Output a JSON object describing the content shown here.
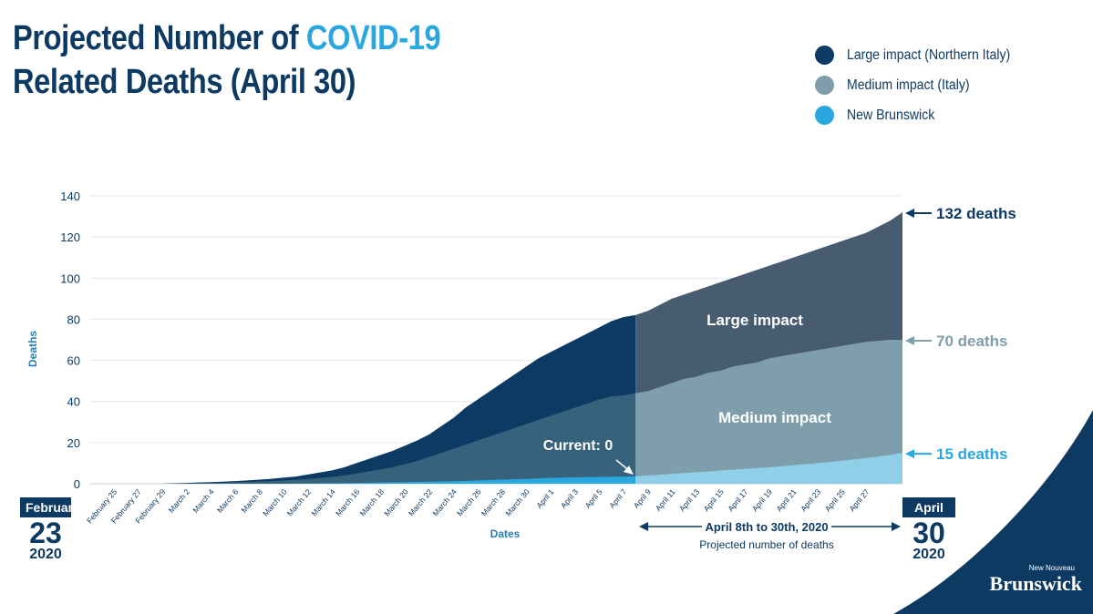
{
  "title": {
    "line1_prefix": "Projected Number of ",
    "line1_highlight": "COVID-19",
    "line2": "Related Deaths (April 30)"
  },
  "legend": [
    {
      "label": "Large impact (Northern Italy)",
      "color": "#0d3a63"
    },
    {
      "label": "Medium impact (Italy)",
      "color": "#7e9eab"
    },
    {
      "label": "New Brunswick",
      "color": "#2aa7de"
    }
  ],
  "start_badge": {
    "month": "February",
    "day": "23",
    "year": "2020"
  },
  "end_badge": {
    "month": "April",
    "day": "30",
    "year": "2020"
  },
  "logo": {
    "small": "New Nouveau",
    "big": "Brunswick"
  },
  "chart_data": {
    "type": "area",
    "ylabel": "Deaths",
    "xlabel": "Dates",
    "ylim": [
      0,
      140
    ],
    "yticks": [
      0,
      20,
      40,
      60,
      80,
      100,
      120,
      140
    ],
    "grid": true,
    "x": [
      "Feb 23",
      "Feb 24",
      "Feb 25",
      "Feb 26",
      "Feb 27",
      "Feb 28",
      "Feb 29",
      "Mar 1",
      "Mar 2",
      "Mar 3",
      "Mar 4",
      "Mar 5",
      "Mar 6",
      "Mar 7",
      "Mar 8",
      "Mar 9",
      "Mar 10",
      "Mar 11",
      "Mar 12",
      "Mar 13",
      "Mar 14",
      "Mar 15",
      "Mar 16",
      "Mar 17",
      "Mar 18",
      "Mar 19",
      "Mar 20",
      "Mar 21",
      "Mar 22",
      "Mar 23",
      "Mar 24",
      "Mar 25",
      "Mar 26",
      "Mar 27",
      "Mar 28",
      "Mar 29",
      "Mar 30",
      "Mar 31",
      "Apr 1",
      "Apr 2",
      "Apr 3",
      "Apr 4",
      "Apr 5",
      "Apr 6",
      "Apr 7",
      "Apr 8",
      "Apr 9",
      "Apr 10",
      "Apr 11",
      "Apr 12",
      "Apr 13",
      "Apr 14",
      "Apr 15",
      "Apr 16",
      "Apr 17",
      "Apr 18",
      "Apr 19",
      "Apr 20",
      "Apr 21",
      "Apr 22",
      "Apr 23",
      "Apr 24",
      "Apr 25",
      "Apr 26",
      "Apr 27",
      "Apr 28",
      "Apr 29",
      "Apr 30"
    ],
    "tick_labels": [
      "February 25",
      "February 27",
      "February 29",
      "March 2",
      "March 4",
      "March 6",
      "March 8",
      "March 10",
      "March 12",
      "March 14",
      "March 16",
      "March 18",
      "March 20",
      "March 22",
      "March 24",
      "March 26",
      "March 28",
      "March 30",
      "April 1",
      "April 3",
      "April 5",
      "April 7",
      "April 9",
      "April 11",
      "April 13",
      "April 15",
      "April 17",
      "April 19",
      "April 21",
      "April 23",
      "April 25",
      "April 27"
    ],
    "tick_start_index": 2,
    "tick_step": 2,
    "projection_start_index": 45,
    "series": [
      {
        "name": "Large impact (Northern Italy)",
        "color": "#0d3a63",
        "projected_color": "#475c70",
        "values": [
          0,
          0,
          0,
          0,
          0,
          0,
          0,
          0.2,
          0.4,
          0.6,
          0.8,
          1,
          1.3,
          1.6,
          2,
          2.4,
          3,
          3.5,
          4.5,
          5.5,
          6.5,
          8,
          10,
          12,
          14,
          16,
          18.5,
          21,
          24,
          28,
          32,
          37,
          41,
          45,
          49,
          53,
          57,
          61,
          64,
          67,
          70,
          73,
          76,
          79,
          81,
          82,
          84,
          87,
          90,
          92,
          94,
          96,
          98,
          100,
          102,
          104,
          106,
          108,
          110,
          112,
          114,
          116,
          118,
          120,
          122,
          125,
          128,
          132
        ]
      },
      {
        "name": "Medium impact (Italy)",
        "color": "#36627c",
        "projected_color": "#7e9eab",
        "values": [
          0,
          0,
          0,
          0,
          0,
          0,
          0,
          0.1,
          0.2,
          0.3,
          0.4,
          0.5,
          0.7,
          0.9,
          1.1,
          1.3,
          1.6,
          1.9,
          2.3,
          2.8,
          3.3,
          4,
          5,
          6,
          7,
          8,
          9.5,
          11,
          13,
          15,
          17,
          19,
          21,
          23,
          25,
          27,
          29,
          31,
          33,
          35,
          37,
          39,
          41,
          42.5,
          43,
          44,
          45,
          47,
          49,
          51,
          52,
          54,
          55,
          57,
          58,
          59,
          61,
          62,
          63,
          64,
          65,
          66,
          67,
          68,
          69,
          69.5,
          70,
          70
        ]
      },
      {
        "name": "New Brunswick",
        "color": "#2aa7de",
        "projected_color": "#8fcfe8",
        "values": [
          0,
          0,
          0,
          0,
          0,
          0,
          0,
          0,
          0,
          0,
          0,
          0,
          0,
          0,
          0,
          0,
          0,
          0.1,
          0.1,
          0.2,
          0.2,
          0.3,
          0.4,
          0.5,
          0.6,
          0.7,
          0.8,
          0.9,
          1,
          1.1,
          1.2,
          1.4,
          1.6,
          1.8,
          2,
          2.2,
          2.4,
          2.6,
          2.8,
          3,
          3.1,
          3.2,
          3.3,
          3.4,
          3.5,
          3.6,
          4,
          4.4,
          4.8,
          5.2,
          5.6,
          6,
          6.4,
          6.8,
          7.2,
          7.6,
          8,
          8.5,
          9,
          9.5,
          10,
          10.6,
          11.2,
          11.8,
          12.5,
          13.2,
          14,
          15
        ]
      }
    ],
    "annotations": {
      "current": "Current: 0",
      "large_region": "Large impact",
      "medium_region": "Medium impact",
      "end_large": "132 deaths",
      "end_medium": "70 deaths",
      "end_nb": "15 deaths",
      "projection_range": "April 8th to 30th, 2020",
      "projection_caption": "Projected number of deaths"
    }
  }
}
